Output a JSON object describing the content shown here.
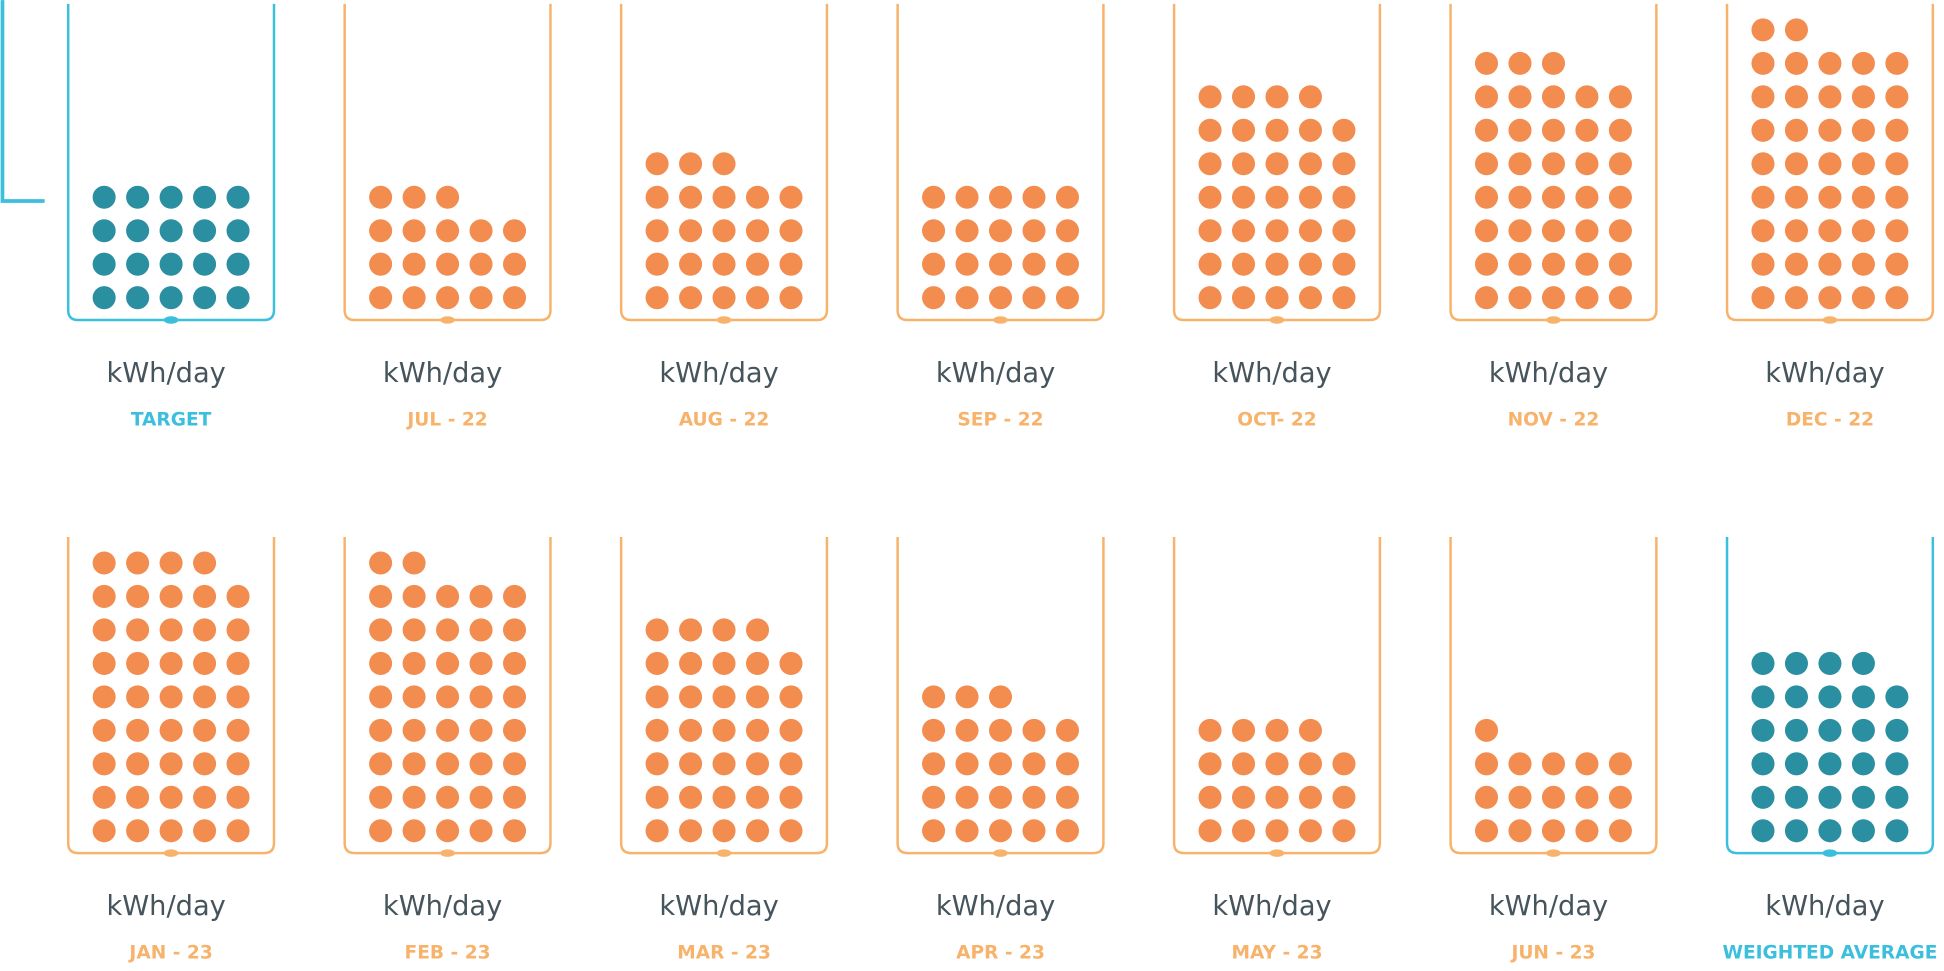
{
  "chart_data": {
    "type": "dot",
    "unit": "kWh/day",
    "items": [
      {
        "label": "TARGET",
        "value": 20,
        "color": "#2a8fa0",
        "outline": "#3bbfdd"
      },
      {
        "label": "JUL - 22",
        "value": 18,
        "color": "#f28c4f",
        "outline": "#f7b36b"
      },
      {
        "label": "AUG - 22",
        "value": 23,
        "color": "#f28c4f",
        "outline": "#f7b36b"
      },
      {
        "label": "SEP - 22",
        "value": 20,
        "color": "#f28c4f",
        "outline": "#f7b36b"
      },
      {
        "label": "OCT- 22",
        "value": 34,
        "color": "#f28c4f",
        "outline": "#f7b36b"
      },
      {
        "label": "NOV - 22",
        "value": 38,
        "color": "#f28c4f",
        "outline": "#f7b36b"
      },
      {
        "label": "DEC - 22",
        "value": 42,
        "color": "#f28c4f",
        "outline": "#f7b36b"
      },
      {
        "label": "JAN - 23",
        "value": 44,
        "color": "#f28c4f",
        "outline": "#f7b36b"
      },
      {
        "label": "FEB - 23",
        "value": 42,
        "color": "#f28c4f",
        "outline": "#f7b36b"
      },
      {
        "label": "MAR - 23",
        "value": 34,
        "color": "#f28c4f",
        "outline": "#f7b36b"
      },
      {
        "label": "APR - 23",
        "value": 23,
        "color": "#f28c4f",
        "outline": "#f7b36b"
      },
      {
        "label": "MAY - 23",
        "value": 19,
        "color": "#f28c4f",
        "outline": "#f7b36b"
      },
      {
        "label": "JUN - 23",
        "value": 16,
        "color": "#f28c4f",
        "outline": "#f7b36b"
      },
      {
        "label": "WEIGHTED AVERAGE",
        "value": 29,
        "color": "#2a8fa0",
        "outline": "#3bbfdd"
      }
    ]
  }
}
